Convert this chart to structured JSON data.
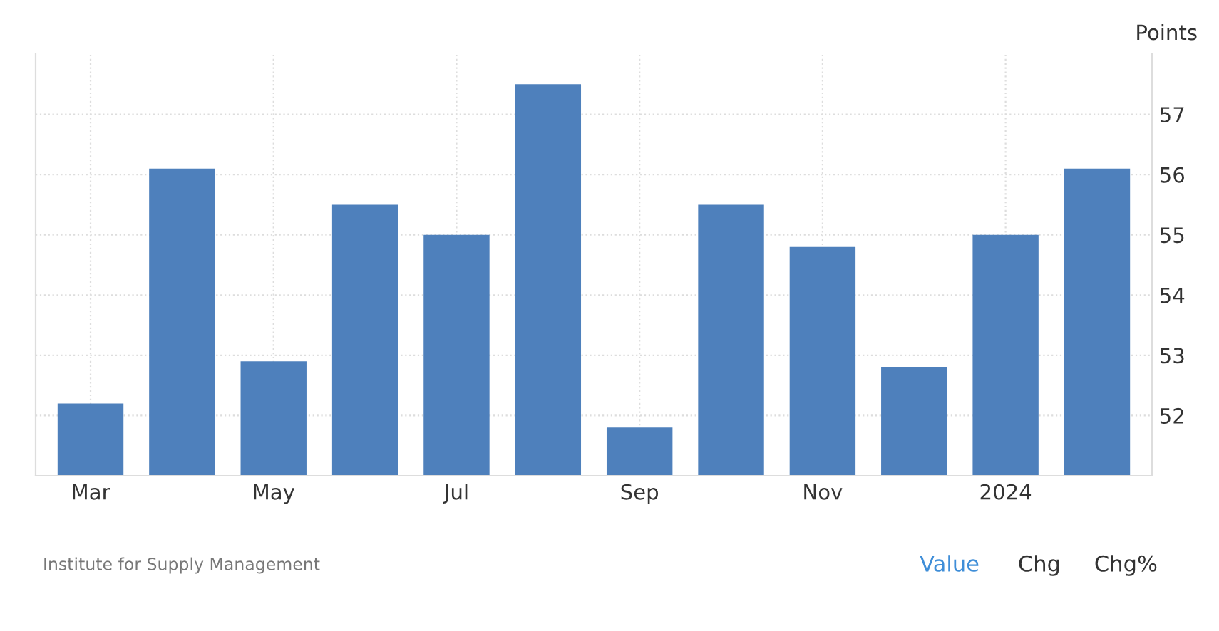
{
  "chart_data": {
    "type": "bar",
    "ylabel": "Points",
    "categories": [
      "Mar",
      null,
      "May",
      null,
      "Jul",
      null,
      "Sep",
      null,
      "Nov",
      null,
      "2024",
      null
    ],
    "values": [
      52.2,
      56.1,
      52.9,
      55.5,
      55.0,
      57.5,
      51.8,
      55.5,
      54.8,
      52.8,
      55.0,
      56.1
    ],
    "color": "#4e80bc",
    "ylim": [
      51,
      58
    ],
    "yticks": [
      52,
      53,
      54,
      55,
      56,
      57
    ],
    "grid": true,
    "legend": false,
    "annotations": [
      "Institute for Supply Management",
      "Value",
      "Chg",
      "Chg%"
    ]
  }
}
